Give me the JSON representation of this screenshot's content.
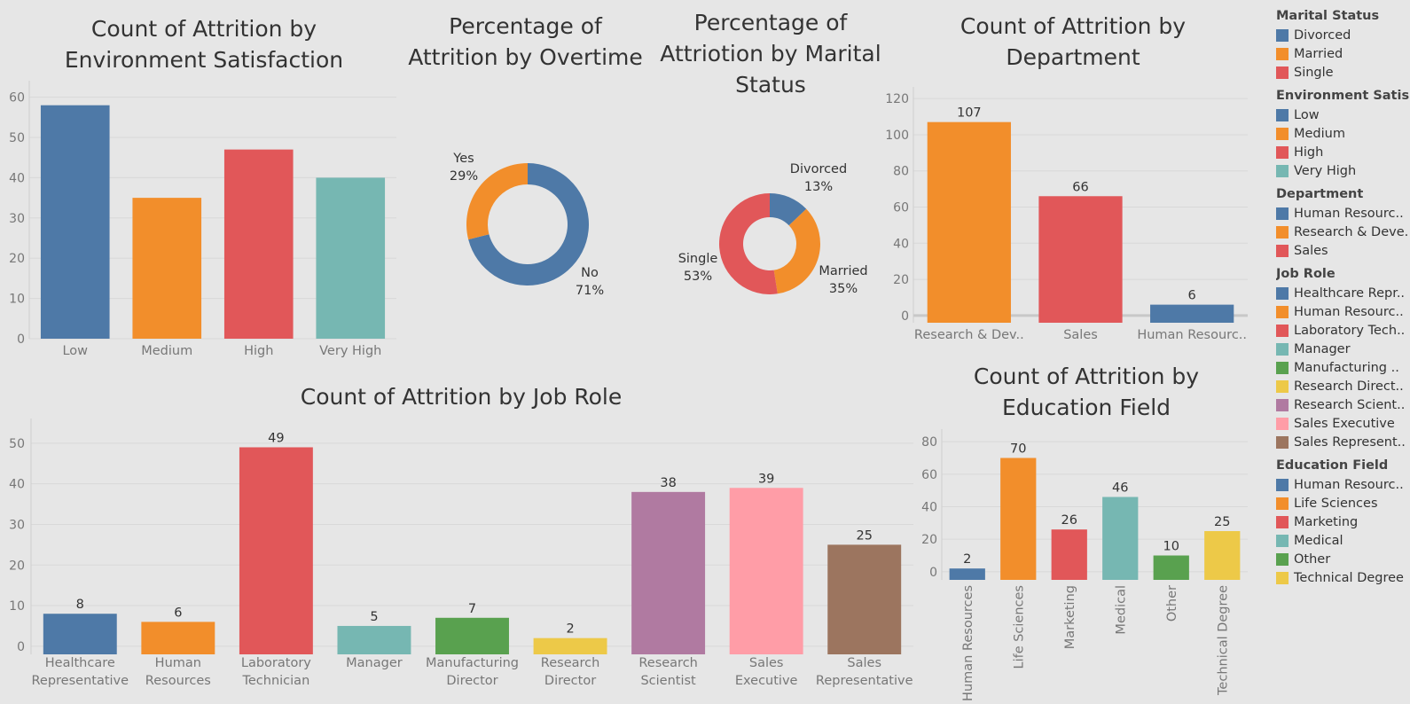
{
  "colors": {
    "blue": "#4e79a7",
    "orange": "#f28e2b",
    "red": "#e15759",
    "teal": "#76b7b2",
    "green": "#59a14f",
    "yellow": "#edc948",
    "purple": "#b07aa1",
    "pink": "#ff9da7",
    "brown": "#9c755f"
  },
  "chart_data": [
    {
      "id": "env",
      "type": "bar",
      "title": "Count of Attrition by Environment Satisfaction",
      "categories": [
        "Low",
        "Medium",
        "High",
        "Very High"
      ],
      "values": [
        58,
        35,
        47,
        40
      ],
      "colors": [
        "#4e79a7",
        "#f28e2b",
        "#e15759",
        "#76b7b2"
      ],
      "yticks": [
        0,
        10,
        20,
        30,
        40,
        50,
        60
      ],
      "ylim": [
        0,
        63
      ],
      "grid": true
    },
    {
      "id": "overtime",
      "type": "pie",
      "title": "Percentage of Attrition by Overtime",
      "slices": [
        {
          "label": "No",
          "value": 71,
          "text": "71%",
          "color": "#4e79a7"
        },
        {
          "label": "Yes",
          "value": 29,
          "text": "29%",
          "color": "#f28e2b"
        }
      ]
    },
    {
      "id": "marital",
      "type": "pie",
      "title": "Percentage of Attriotion by Marital Status",
      "slices": [
        {
          "label": "Divorced",
          "value": 13,
          "text": "13%",
          "color": "#4e79a7"
        },
        {
          "label": "Married",
          "value": 35,
          "text": "35%",
          "color": "#f28e2b"
        },
        {
          "label": "Single",
          "value": 53,
          "text": "53%",
          "color": "#e15759"
        }
      ]
    },
    {
      "id": "dept",
      "type": "bar",
      "title": "Count of Attrition by Department",
      "categories": [
        "Research & Dev..",
        "Sales",
        "Human Resourc.."
      ],
      "values": [
        107,
        66,
        6
      ],
      "colors": [
        "#f28e2b",
        "#e15759",
        "#4e79a7"
      ],
      "yticks": [
        0,
        20,
        40,
        60,
        80,
        100,
        120
      ],
      "ylim": [
        -4,
        124
      ],
      "grid": true
    },
    {
      "id": "job",
      "type": "bar",
      "title": "Count of Attrition by Job Role",
      "categories": [
        [
          "Healthcare",
          "Representative"
        ],
        [
          "Human",
          "Resources"
        ],
        [
          "Laboratory",
          "Technician"
        ],
        [
          "Manager"
        ],
        [
          "Manufacturing",
          "Director"
        ],
        [
          "Research",
          "Director"
        ],
        [
          "Research",
          "Scientist"
        ],
        [
          "Sales",
          "Executive"
        ],
        [
          "Sales",
          "Representative"
        ]
      ],
      "values": [
        8,
        6,
        49,
        5,
        7,
        2,
        38,
        39,
        25
      ],
      "colors": [
        "#4e79a7",
        "#f28e2b",
        "#e15759",
        "#76b7b2",
        "#59a14f",
        "#edc948",
        "#b07aa1",
        "#ff9da7",
        "#9c755f"
      ],
      "yticks": [
        0,
        10,
        20,
        30,
        40,
        50
      ],
      "ylim": [
        -2,
        55
      ],
      "grid": true
    },
    {
      "id": "edu",
      "type": "bar",
      "title": "Count of Attrition by Education Field",
      "categories": [
        "Human Resources",
        "Life Sciences",
        "Marketing",
        "Medical",
        "Other",
        "Technical Degree"
      ],
      "values": [
        2,
        70,
        26,
        46,
        10,
        25
      ],
      "colors": [
        "#4e79a7",
        "#f28e2b",
        "#e15759",
        "#76b7b2",
        "#59a14f",
        "#edc948"
      ],
      "yticks": [
        0,
        20,
        40,
        60,
        80
      ],
      "ylim": [
        -5,
        85
      ],
      "grid": true
    }
  ],
  "legend": [
    {
      "title": "Marital Status",
      "items": [
        {
          "label": "Divorced",
          "color": "#4e79a7"
        },
        {
          "label": "Married",
          "color": "#f28e2b"
        },
        {
          "label": "Single",
          "color": "#e15759"
        }
      ]
    },
    {
      "title": "Environment Satisf..",
      "items": [
        {
          "label": "Low",
          "color": "#4e79a7"
        },
        {
          "label": "Medium",
          "color": "#f28e2b"
        },
        {
          "label": "High",
          "color": "#e15759"
        },
        {
          "label": "Very High",
          "color": "#76b7b2"
        }
      ]
    },
    {
      "title": "Department",
      "items": [
        {
          "label": "Human Resourc..",
          "color": "#4e79a7"
        },
        {
          "label": "Research & Deve..",
          "color": "#f28e2b"
        },
        {
          "label": "Sales",
          "color": "#e15759"
        }
      ]
    },
    {
      "title": "Job Role",
      "items": [
        {
          "label": "Healthcare Repr..",
          "color": "#4e79a7"
        },
        {
          "label": "Human Resourc..",
          "color": "#f28e2b"
        },
        {
          "label": "Laboratory Tech..",
          "color": "#e15759"
        },
        {
          "label": "Manager",
          "color": "#76b7b2"
        },
        {
          "label": "Manufacturing ..",
          "color": "#59a14f"
        },
        {
          "label": "Research Direct..",
          "color": "#edc948"
        },
        {
          "label": "Research Scient..",
          "color": "#b07aa1"
        },
        {
          "label": "Sales Executive",
          "color": "#ff9da7"
        },
        {
          "label": "Sales Represent..",
          "color": "#9c755f"
        }
      ]
    },
    {
      "title": "Education Field",
      "items": [
        {
          "label": "Human Resourc..",
          "color": "#4e79a7"
        },
        {
          "label": "Life Sciences",
          "color": "#f28e2b"
        },
        {
          "label": "Marketing",
          "color": "#e15759"
        },
        {
          "label": "Medical",
          "color": "#76b7b2"
        },
        {
          "label": "Other",
          "color": "#59a14f"
        },
        {
          "label": "Technical Degree",
          "color": "#edc948"
        }
      ]
    }
  ]
}
